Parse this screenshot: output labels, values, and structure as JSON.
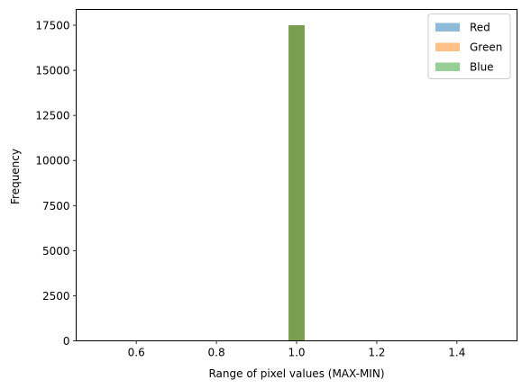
{
  "chart_data": {
    "type": "bar",
    "title": "",
    "xlabel": "Range of pixel values (MAX-MIN)",
    "ylabel": "Frequency",
    "xlim": [
      0.45,
      1.55
    ],
    "ylim": [
      0,
      18375
    ],
    "x_ticks": [
      0.6,
      0.8,
      1.0,
      1.2,
      1.4
    ],
    "x_tick_labels": [
      "0.6",
      "0.8",
      "1.0",
      "1.2",
      "1.4"
    ],
    "y_ticks": [
      0,
      2500,
      5000,
      7500,
      10000,
      12500,
      15000,
      17500
    ],
    "y_tick_labels": [
      "0",
      "2500",
      "5000",
      "7500",
      "10000",
      "12500",
      "15000",
      "17500"
    ],
    "grid": false,
    "legend_position": "top-right",
    "series": [
      {
        "name": "Red",
        "color": "#1f77b4",
        "alpha": 0.5,
        "bins": [
          {
            "x0": 0.98,
            "x1": 1.02,
            "value": 17500
          }
        ]
      },
      {
        "name": "Green",
        "color": "#ff7f0e",
        "alpha": 0.5,
        "bins": [
          {
            "x0": 0.98,
            "x1": 1.02,
            "value": 17500
          }
        ]
      },
      {
        "name": "Blue",
        "color": "#2ca02c",
        "alpha": 0.5,
        "bins": [
          {
            "x0": 0.98,
            "x1": 1.02,
            "value": 17500
          }
        ]
      }
    ]
  }
}
